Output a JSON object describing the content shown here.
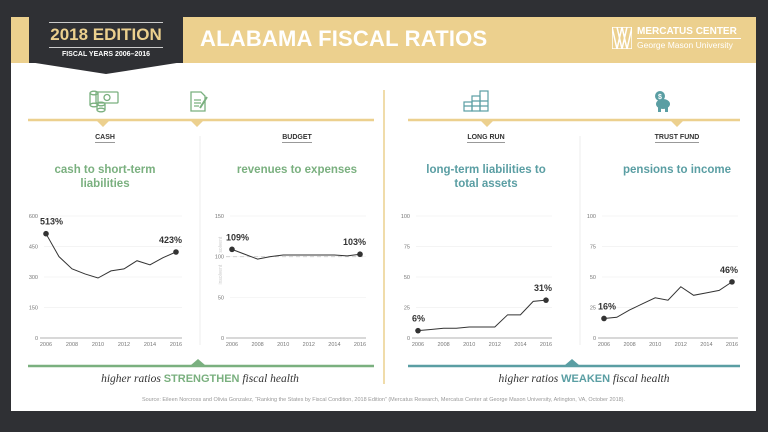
{
  "header": {
    "edition": "2018 EDITION",
    "fiscal_years": "FISCAL YEARS 2006–2016",
    "title": "ALABAMA FISCAL RATIOS",
    "logo_line1": "MERCATUS CENTER",
    "logo_line2": "George Mason University"
  },
  "colors": {
    "gold": "#ecd08e",
    "dark": "#2f3034",
    "green": "#7ab07f",
    "teal": "#5a9ea3"
  },
  "panels_left_note": {
    "prefix": "higher ratios ",
    "emph": "STRENGTHEN",
    "suffix": " fiscal health"
  },
  "panels_right_note": {
    "prefix": "higher ratios ",
    "emph": "WEAKEN",
    "suffix": " fiscal health"
  },
  "source": "Source: Eileen Norcross and Olivia Gonzalez, “Ranking the States by Fiscal Condition, 2018 Edition” (Mercatus Research, Mercatus Center at George Mason University, Arlington, VA, October 2018).",
  "chart_data": [
    {
      "type": "line",
      "category": "CASH",
      "icon": "cash-coins-icon",
      "title": "cash to short-term liabilities",
      "x": [
        2006,
        2007,
        2008,
        2009,
        2010,
        2011,
        2012,
        2013,
        2014,
        2015,
        2016
      ],
      "values": [
        513,
        400,
        340,
        315,
        295,
        330,
        340,
        380,
        360,
        395,
        423
      ],
      "ylim": [
        0,
        600
      ],
      "yticks": [
        0,
        150,
        300,
        450,
        600
      ],
      "xticks": [
        2006,
        2008,
        2010,
        2012,
        2014,
        2016
      ],
      "labels": {
        "start": "513%",
        "end": "423%"
      }
    },
    {
      "type": "line",
      "category": "BUDGET",
      "icon": "budget-document-icon",
      "title": "revenues to expenses",
      "x": [
        2006,
        2007,
        2008,
        2009,
        2010,
        2011,
        2012,
        2013,
        2014,
        2015,
        2016
      ],
      "values": [
        109,
        103,
        97,
        100,
        102,
        102,
        102,
        102,
        102,
        101,
        103
      ],
      "ylim": [
        0,
        150
      ],
      "yticks": [
        0,
        50,
        100,
        150
      ],
      "xticks": [
        2006,
        2008,
        2010,
        2012,
        2014,
        2016
      ],
      "labels": {
        "start": "109%",
        "end": "103%"
      },
      "reference_line": {
        "value": 100,
        "above": "solvent",
        "below": "insolvent"
      }
    },
    {
      "type": "line",
      "category": "LONG RUN",
      "icon": "stacked-money-icon",
      "title": "long-term liabilities to total assets",
      "x": [
        2006,
        2007,
        2008,
        2009,
        2010,
        2011,
        2012,
        2013,
        2014,
        2015,
        2016
      ],
      "values": [
        6,
        7,
        8,
        8,
        9,
        9,
        9,
        19,
        19,
        30,
        31
      ],
      "ylim": [
        0,
        100
      ],
      "yticks": [
        0,
        25,
        50,
        75,
        100
      ],
      "xticks": [
        2006,
        2008,
        2010,
        2012,
        2014,
        2016
      ],
      "labels": {
        "start": "6%",
        "end": "31%"
      }
    },
    {
      "type": "line",
      "category": "TRUST FUND",
      "icon": "piggy-bank-icon",
      "title": "pensions to income",
      "x": [
        2006,
        2007,
        2008,
        2009,
        2010,
        2011,
        2012,
        2013,
        2014,
        2015,
        2016
      ],
      "values": [
        16,
        17,
        23,
        28,
        33,
        31,
        42,
        35,
        37,
        39,
        46
      ],
      "ylim": [
        0,
        100
      ],
      "yticks": [
        0,
        25,
        50,
        75,
        100
      ],
      "xticks": [
        2006,
        2008,
        2010,
        2012,
        2014,
        2016
      ],
      "labels": {
        "start": "16%",
        "end": "46%"
      }
    }
  ]
}
